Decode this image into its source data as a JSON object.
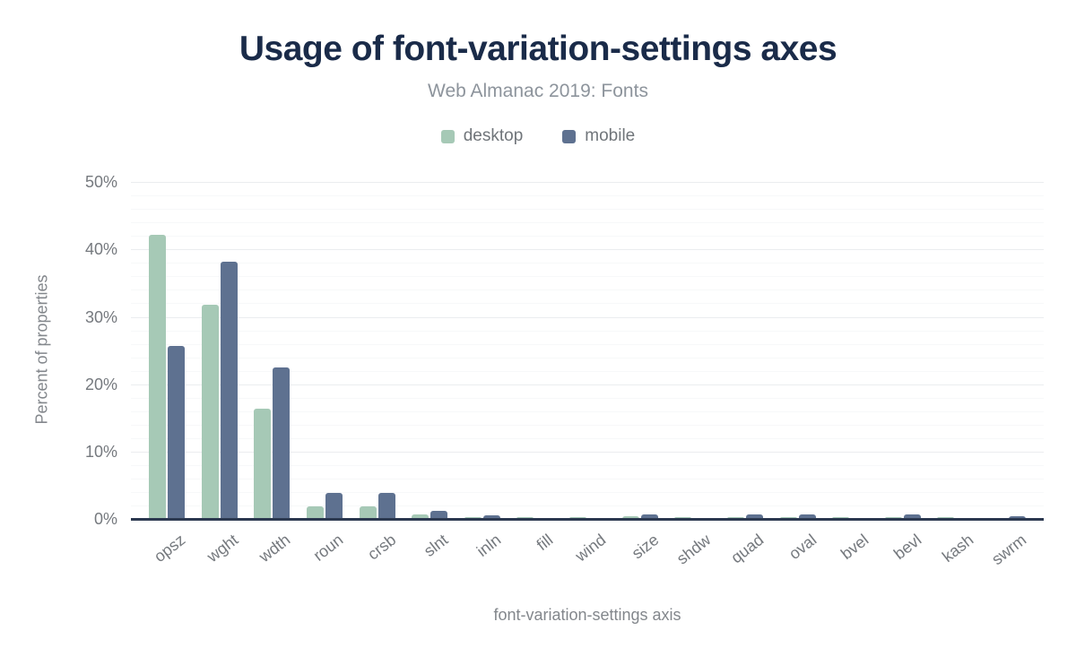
{
  "header": {
    "title": "Usage of font-variation-settings axes",
    "subtitle": "Web Almanac 2019: Fonts"
  },
  "colors": {
    "desktop": "#a6c9b6",
    "mobile": "#5e7190",
    "title_navy": "#1a2b49",
    "axis_line": "#2c3950",
    "tick_label_gray": "#75797e",
    "major_gridline": "#ebedef",
    "minor_gridline": "#f7f8f9"
  },
  "chart_data": {
    "type": "bar",
    "title": "Usage of font-variation-settings axes",
    "subtitle": "Web Almanac 2019: Fonts",
    "xlabel": "font-variation-settings axis",
    "ylabel": "Percent of properties",
    "ylim": [
      0,
      50
    ],
    "yticks": [
      "0%",
      "10%",
      "20%",
      "30%",
      "40%",
      "50%"
    ],
    "ytick_values": [
      0,
      10,
      20,
      30,
      40,
      50
    ],
    "grid": "horizontal: major every 10%, minor every 2%",
    "legend_position": "top",
    "categories": [
      "opsz",
      "wght",
      "wdth",
      "roun",
      "crsb",
      "slnt",
      "inln",
      "fill",
      "wind",
      "size",
      "shdw",
      "quad",
      "oval",
      "bvel",
      "bevl",
      "kash",
      "swrm"
    ],
    "series": [
      {
        "name": "desktop",
        "color": "#a6c9b6",
        "values": [
          42.2,
          31.8,
          16.3,
          1.9,
          1.9,
          0.7,
          0.3,
          0.3,
          0.3,
          0.35,
          0.3,
          0.3,
          0.3,
          0.3,
          0.3,
          0.3,
          0.15
        ]
      },
      {
        "name": "mobile",
        "color": "#5e7190",
        "values": [
          25.7,
          38.2,
          22.5,
          3.8,
          3.9,
          1.2,
          0.5,
          0,
          0,
          0.6,
          0,
          0.6,
          0.6,
          0,
          0.6,
          0,
          0.45
        ]
      }
    ]
  }
}
